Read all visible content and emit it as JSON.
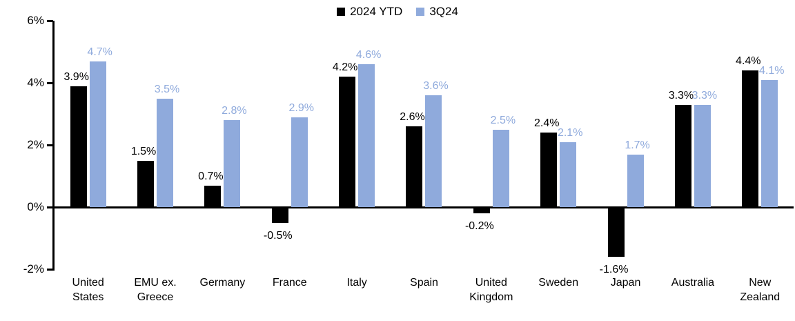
{
  "chart_data": {
    "type": "bar",
    "title": "",
    "xlabel": "",
    "ylabel": "",
    "grid": false,
    "legend_position": "top-center",
    "categories": [
      "United States",
      "EMU ex. Greece",
      "Germany",
      "France",
      "Italy",
      "Spain",
      "United Kingdom",
      "Sweden",
      "Japan",
      "Australia",
      "New Zealand"
    ],
    "series": [
      {
        "name": "2024 YTD",
        "color": "#000000",
        "values": [
          3.9,
          1.5,
          0.7,
          -0.5,
          4.2,
          2.6,
          -0.2,
          2.4,
          -1.6,
          3.3,
          4.4
        ],
        "labels": [
          "3.9%",
          "1.5%",
          "0.7%",
          "-0.5%",
          "4.2%",
          "2.6%",
          "-0.2%",
          "2.4%",
          "-1.6%",
          "3.3%",
          "4.4%"
        ]
      },
      {
        "name": "3Q24",
        "color": "#8FAADC",
        "values": [
          4.7,
          3.5,
          2.8,
          2.9,
          4.6,
          3.6,
          2.5,
          2.1,
          1.7,
          3.3,
          4.1
        ],
        "labels": [
          "4.7%",
          "3.5%",
          "2.8%",
          "2.9%",
          "4.6%",
          "3.6%",
          "2.5%",
          "2.1%",
          "1.7%",
          "3.3%",
          "4.1%"
        ]
      }
    ],
    "ylim": [
      -2,
      6
    ],
    "y_step": 2,
    "y_tick_labels": [
      "6%",
      "4%",
      "2%",
      "0%",
      "-2%"
    ],
    "axis_color": "#000000"
  }
}
